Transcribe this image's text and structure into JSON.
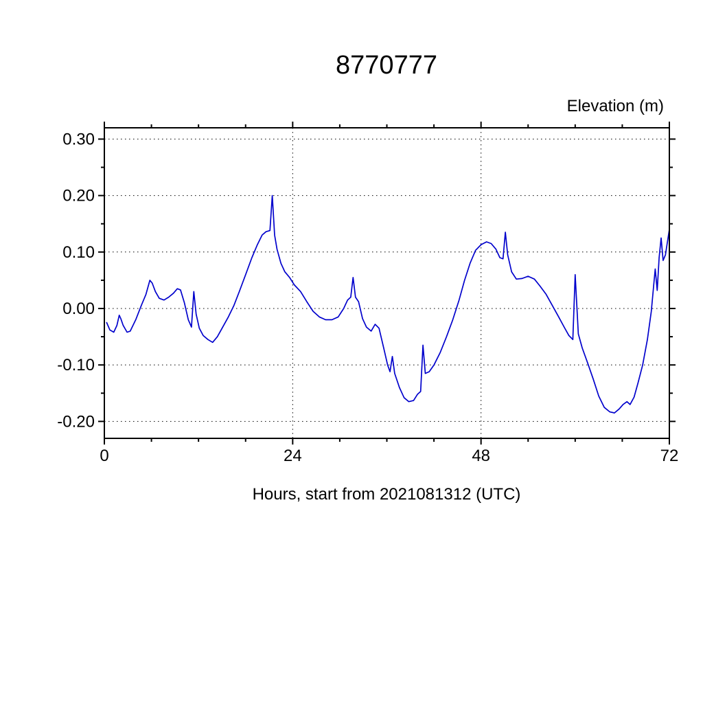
{
  "page": {
    "background": "#ffffff"
  },
  "chart_data": {
    "type": "line",
    "title": "8770777",
    "unit_label": "Elevation (m)",
    "xlabel": "Hours, start from 2021081312 (UTC)",
    "xlim": [
      0,
      72
    ],
    "ylim": [
      -0.23,
      0.32
    ],
    "xticks": [
      0,
      24,
      48,
      72
    ],
    "xtick_labels": [
      "0",
      "24",
      "48",
      "72"
    ],
    "x_minor_step": 6,
    "yticks": [
      -0.2,
      -0.1,
      0.0,
      0.1,
      0.2,
      0.3
    ],
    "ytick_labels": [
      "-0.20",
      "-0.10",
      "0.00",
      "0.10",
      "0.20",
      "0.30"
    ],
    "y_minor_step": 0.05,
    "grid": true,
    "grid_style": "dotted",
    "legend": "none",
    "line_color": "#0000cc",
    "axis_color": "#000000",
    "series": [
      {
        "name": "elevation",
        "points": [
          [
            0.3,
            -0.025
          ],
          [
            0.7,
            -0.038
          ],
          [
            1.2,
            -0.042
          ],
          [
            1.6,
            -0.03
          ],
          [
            1.9,
            -0.012
          ],
          [
            2.1,
            -0.018
          ],
          [
            2.4,
            -0.03
          ],
          [
            2.9,
            -0.042
          ],
          [
            3.3,
            -0.04
          ],
          [
            4.0,
            -0.02
          ],
          [
            4.7,
            0.005
          ],
          [
            5.3,
            0.025
          ],
          [
            5.8,
            0.05
          ],
          [
            6.1,
            0.045
          ],
          [
            6.5,
            0.03
          ],
          [
            7.0,
            0.018
          ],
          [
            7.6,
            0.015
          ],
          [
            8.2,
            0.02
          ],
          [
            8.8,
            0.027
          ],
          [
            9.3,
            0.035
          ],
          [
            9.7,
            0.033
          ],
          [
            10.2,
            0.01
          ],
          [
            10.7,
            -0.02
          ],
          [
            11.1,
            -0.033
          ],
          [
            11.4,
            0.03
          ],
          [
            11.7,
            -0.01
          ],
          [
            12.1,
            -0.035
          ],
          [
            12.6,
            -0.048
          ],
          [
            13.2,
            -0.055
          ],
          [
            13.8,
            -0.06
          ],
          [
            14.4,
            -0.05
          ],
          [
            15.0,
            -0.035
          ],
          [
            15.8,
            -0.015
          ],
          [
            16.5,
            0.005
          ],
          [
            17.2,
            0.03
          ],
          [
            18.0,
            0.06
          ],
          [
            18.8,
            0.09
          ],
          [
            19.5,
            0.113
          ],
          [
            20.1,
            0.13
          ],
          [
            20.6,
            0.136
          ],
          [
            21.1,
            0.138
          ],
          [
            21.4,
            0.2
          ],
          [
            21.7,
            0.13
          ],
          [
            22.0,
            0.105
          ],
          [
            22.5,
            0.08
          ],
          [
            23.0,
            0.065
          ],
          [
            23.6,
            0.055
          ],
          [
            24.2,
            0.042
          ],
          [
            25.0,
            0.03
          ],
          [
            25.8,
            0.012
          ],
          [
            26.6,
            -0.005
          ],
          [
            27.4,
            -0.015
          ],
          [
            28.2,
            -0.02
          ],
          [
            29.0,
            -0.02
          ],
          [
            29.8,
            -0.015
          ],
          [
            30.5,
            0.0
          ],
          [
            31.0,
            0.015
          ],
          [
            31.4,
            0.02
          ],
          [
            31.7,
            0.055
          ],
          [
            32.0,
            0.02
          ],
          [
            32.4,
            0.012
          ],
          [
            32.9,
            -0.018
          ],
          [
            33.4,
            -0.033
          ],
          [
            34.0,
            -0.04
          ],
          [
            34.5,
            -0.028
          ],
          [
            35.0,
            -0.035
          ],
          [
            35.6,
            -0.07
          ],
          [
            36.1,
            -0.1
          ],
          [
            36.4,
            -0.112
          ],
          [
            36.7,
            -0.085
          ],
          [
            37.0,
            -0.115
          ],
          [
            37.6,
            -0.14
          ],
          [
            38.2,
            -0.158
          ],
          [
            38.8,
            -0.165
          ],
          [
            39.4,
            -0.163
          ],
          [
            39.9,
            -0.152
          ],
          [
            40.3,
            -0.147
          ],
          [
            40.6,
            -0.065
          ],
          [
            40.9,
            -0.115
          ],
          [
            41.4,
            -0.112
          ],
          [
            42.0,
            -0.1
          ],
          [
            42.8,
            -0.078
          ],
          [
            43.6,
            -0.05
          ],
          [
            44.4,
            -0.02
          ],
          [
            45.2,
            0.015
          ],
          [
            45.9,
            0.05
          ],
          [
            46.6,
            0.08
          ],
          [
            47.3,
            0.103
          ],
          [
            48.0,
            0.113
          ],
          [
            48.7,
            0.118
          ],
          [
            49.3,
            0.115
          ],
          [
            49.9,
            0.105
          ],
          [
            50.4,
            0.09
          ],
          [
            50.8,
            0.088
          ],
          [
            51.1,
            0.135
          ],
          [
            51.4,
            0.095
          ],
          [
            51.9,
            0.065
          ],
          [
            52.5,
            0.052
          ],
          [
            53.2,
            0.053
          ],
          [
            54.0,
            0.057
          ],
          [
            54.8,
            0.052
          ],
          [
            55.5,
            0.04
          ],
          [
            56.3,
            0.025
          ],
          [
            57.1,
            0.005
          ],
          [
            57.9,
            -0.015
          ],
          [
            58.6,
            -0.033
          ],
          [
            59.2,
            -0.048
          ],
          [
            59.7,
            -0.055
          ],
          [
            60.0,
            0.06
          ],
          [
            60.4,
            -0.045
          ],
          [
            60.9,
            -0.07
          ],
          [
            61.6,
            -0.097
          ],
          [
            62.3,
            -0.125
          ],
          [
            63.0,
            -0.155
          ],
          [
            63.7,
            -0.175
          ],
          [
            64.4,
            -0.183
          ],
          [
            65.0,
            -0.185
          ],
          [
            65.6,
            -0.178
          ],
          [
            66.1,
            -0.17
          ],
          [
            66.6,
            -0.165
          ],
          [
            67.0,
            -0.17
          ],
          [
            67.5,
            -0.157
          ],
          [
            68.0,
            -0.132
          ],
          [
            68.6,
            -0.1
          ],
          [
            69.2,
            -0.055
          ],
          [
            69.7,
            -0.005
          ],
          [
            70.0,
            0.04
          ],
          [
            70.2,
            0.07
          ],
          [
            70.45,
            0.032
          ],
          [
            70.7,
            0.09
          ],
          [
            70.95,
            0.125
          ],
          [
            71.2,
            0.085
          ],
          [
            71.5,
            0.095
          ],
          [
            72.0,
            0.14
          ]
        ]
      }
    ]
  }
}
